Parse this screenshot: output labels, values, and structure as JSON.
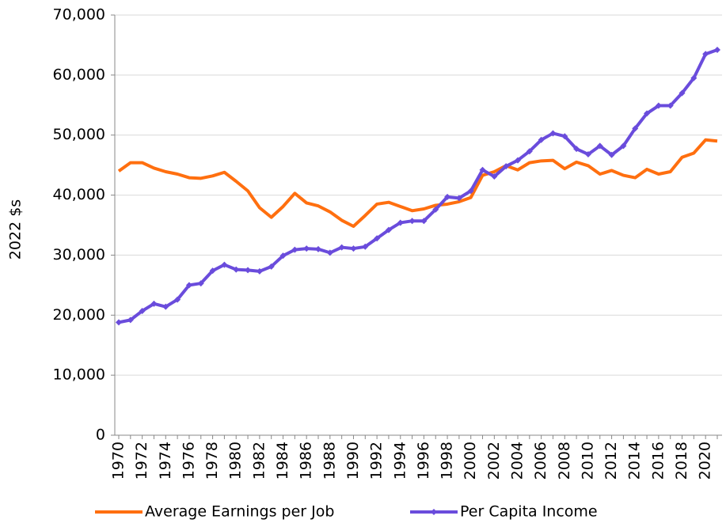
{
  "chart_data": {
    "type": "line",
    "ylabel": "2022 $s",
    "x": [
      1970,
      1971,
      1972,
      1973,
      1974,
      1975,
      1976,
      1977,
      1978,
      1979,
      1980,
      1981,
      1982,
      1983,
      1984,
      1985,
      1986,
      1987,
      1988,
      1989,
      1990,
      1991,
      1992,
      1993,
      1994,
      1995,
      1996,
      1997,
      1998,
      1999,
      2000,
      2001,
      2002,
      2003,
      2004,
      2005,
      2006,
      2007,
      2008,
      2009,
      2010,
      2011,
      2012,
      2013,
      2014,
      2015,
      2016,
      2017,
      2018,
      2019,
      2020,
      2021
    ],
    "series": [
      {
        "name": "Average Earnings per Job",
        "color": "#ff6f0f",
        "marker": false,
        "values": [
          44000,
          45400,
          45400,
          44500,
          43900,
          43500,
          42900,
          42800,
          43200,
          43800,
          42300,
          40700,
          37900,
          36300,
          38100,
          40300,
          38700,
          38200,
          37200,
          35800,
          34800,
          36600,
          38500,
          38800,
          38100,
          37400,
          37700,
          38300,
          38500,
          38900,
          39600,
          43300,
          43900,
          44900,
          44200,
          45400,
          45700,
          45800,
          44400,
          45500,
          44900,
          43500,
          44100,
          43300,
          42900,
          44300,
          43500,
          43900,
          46300,
          47000,
          49200,
          49000
        ]
      },
      {
        "name": "Per Capita Income",
        "color": "#6a4cdc",
        "marker": true,
        "values": [
          18800,
          19200,
          20700,
          21900,
          21400,
          22600,
          25000,
          25300,
          27400,
          28400,
          27600,
          27500,
          27300,
          28100,
          29900,
          30900,
          31100,
          31000,
          30400,
          31300,
          31100,
          31400,
          32800,
          34200,
          35400,
          35700,
          35700,
          37600,
          39700,
          39500,
          40700,
          44200,
          43100,
          44800,
          45800,
          47300,
          49200,
          50300,
          49800,
          47700,
          46800,
          48200,
          46700,
          48200,
          51100,
          53600,
          54900,
          54900,
          57000,
          59500,
          63500,
          64200
        ]
      }
    ],
    "xlim": [
      1970,
      2021
    ],
    "xticks": [
      1970,
      1972,
      1974,
      1976,
      1978,
      1980,
      1982,
      1984,
      1986,
      1988,
      1990,
      1992,
      1994,
      1996,
      1998,
      2000,
      2002,
      2004,
      2006,
      2008,
      2010,
      2012,
      2014,
      2016,
      2018,
      2020
    ],
    "ylim": [
      0,
      70000
    ],
    "yticks": [
      0,
      {
        "value": 10000,
        "label": "10,000"
      },
      {
        "value": 20000,
        "label": "20,000"
      },
      {
        "value": 30000,
        "label": "30,000"
      },
      {
        "value": 40000,
        "label": "40,000"
      },
      {
        "value": 50000,
        "label": "50,000"
      },
      {
        "value": 60000,
        "label": "60,000"
      },
      {
        "value": 70000,
        "label": "70,000"
      }
    ],
    "grid": true,
    "legend": "bottom"
  }
}
